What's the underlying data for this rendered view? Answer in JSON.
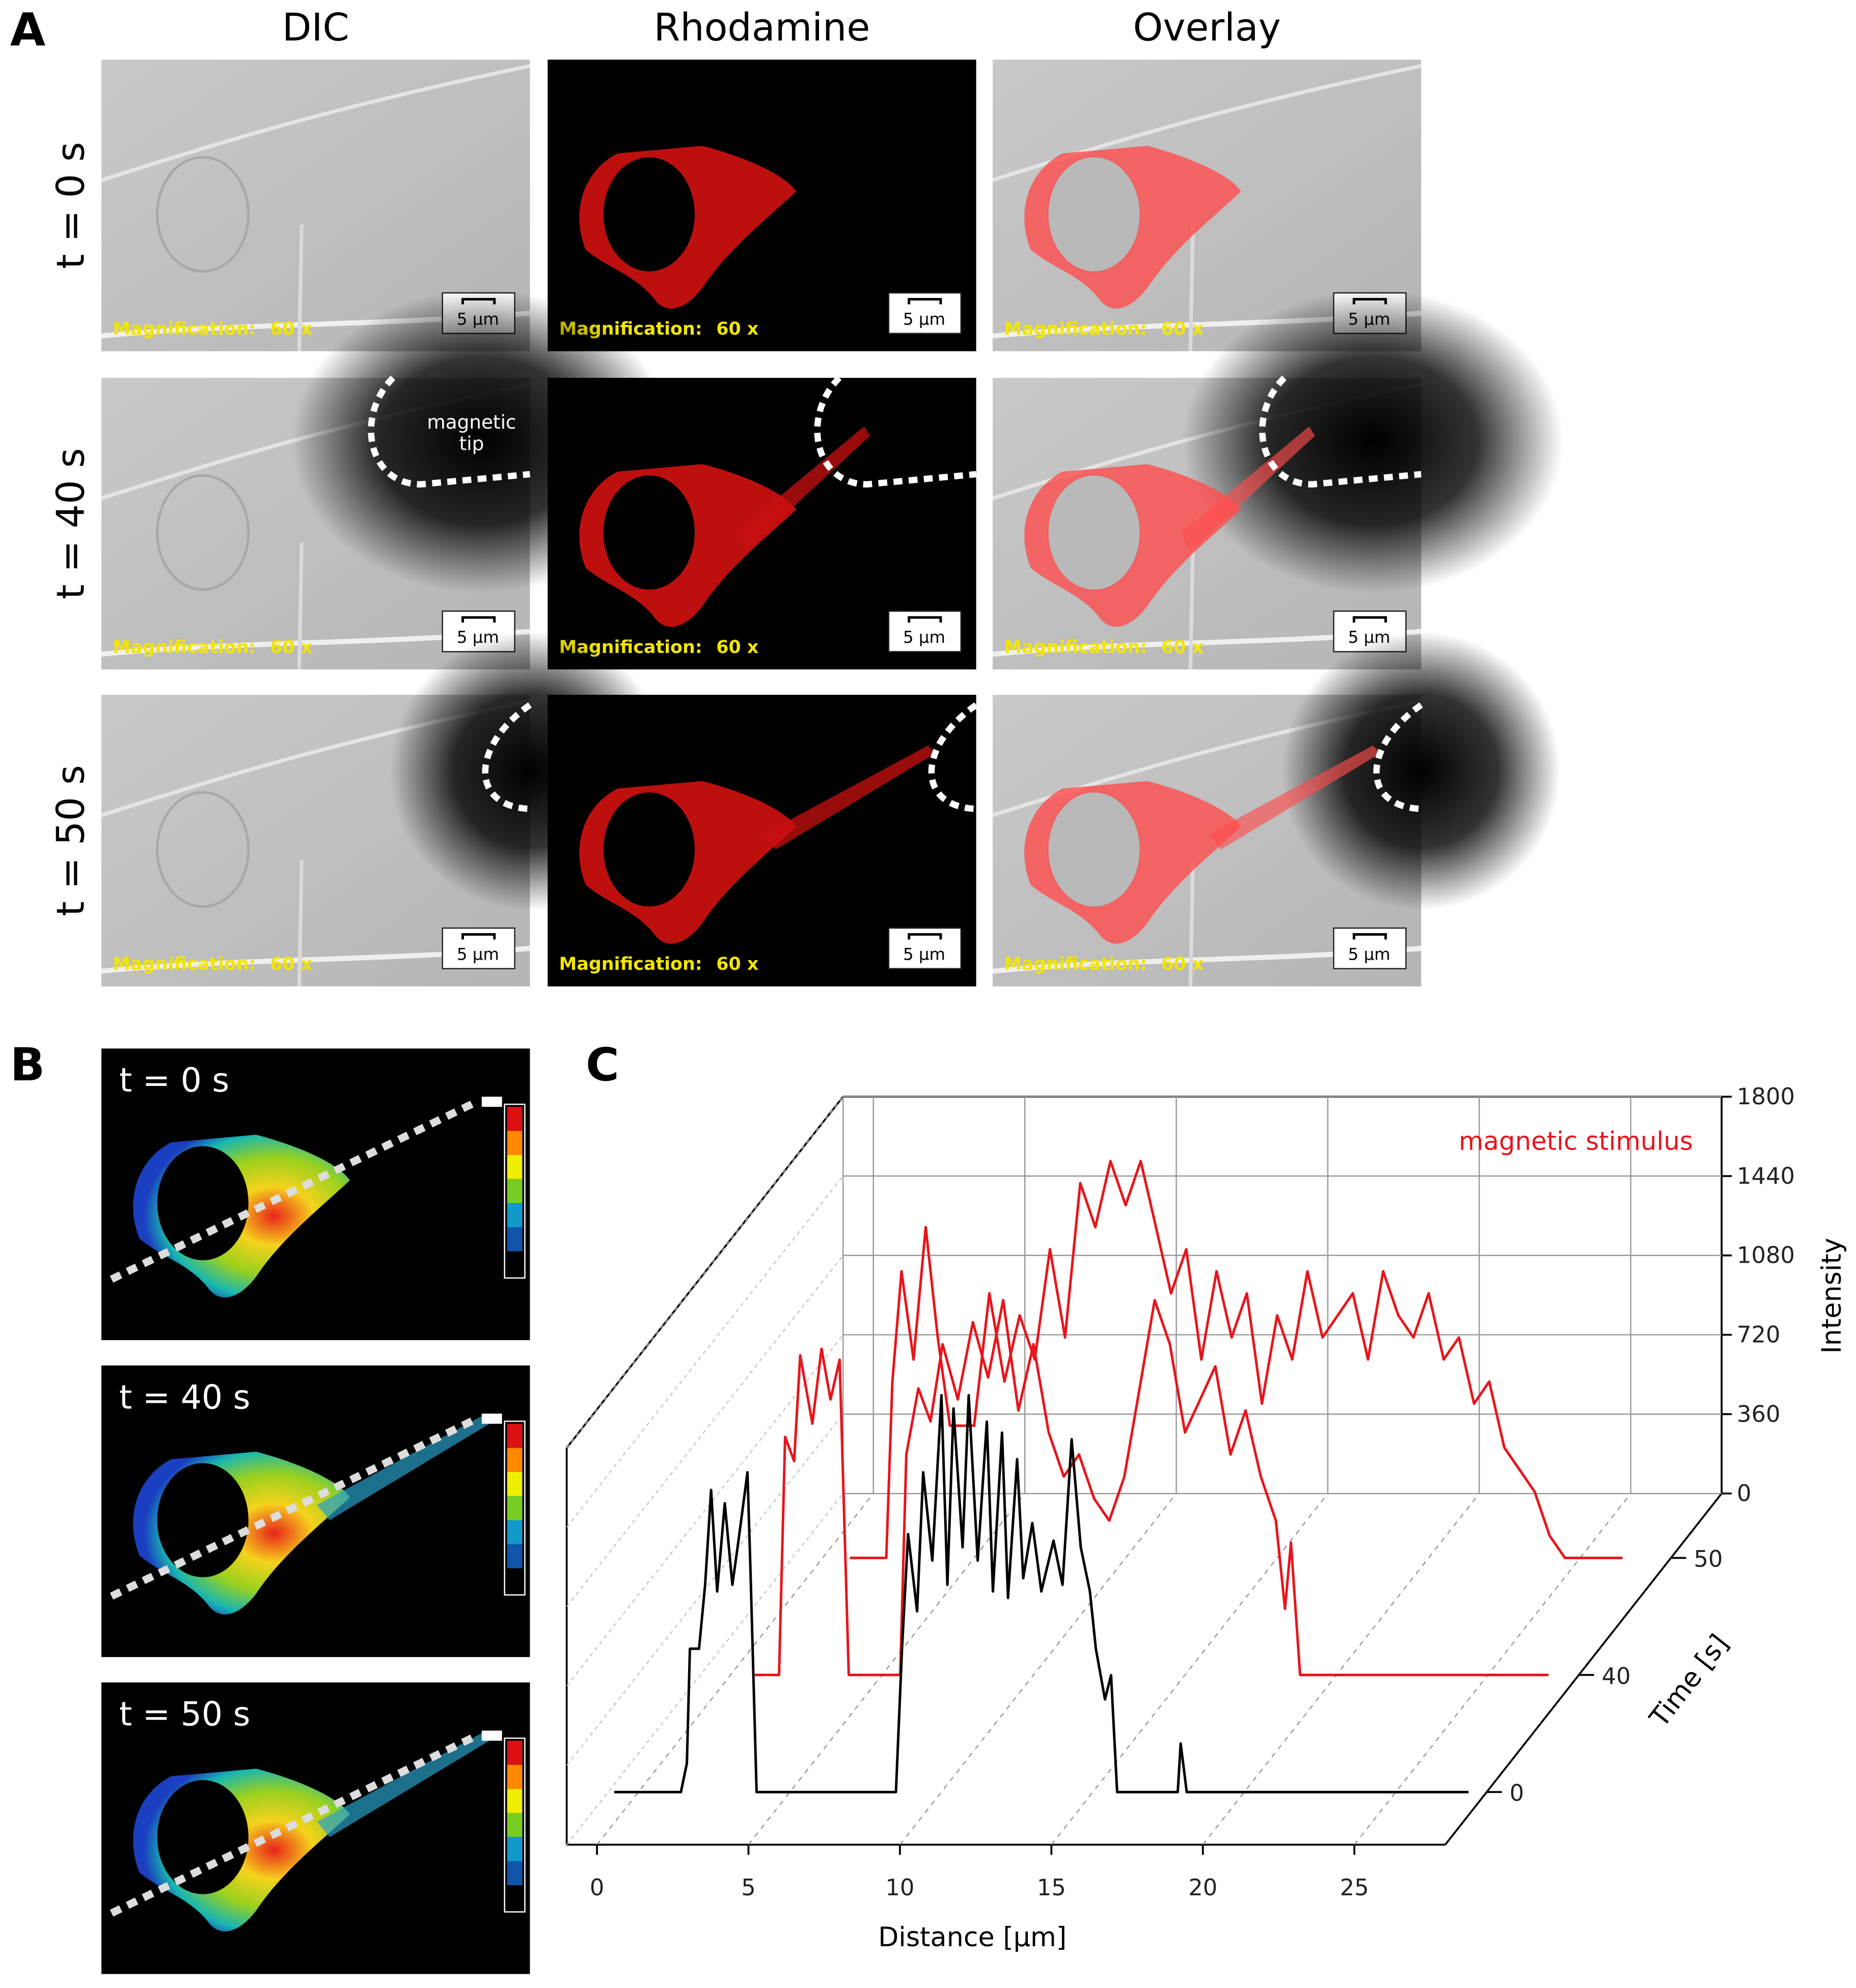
{
  "panel_labels": [
    "A",
    "B",
    "C"
  ],
  "panel_a": {
    "columns": [
      "DIC",
      "Rhodamine",
      "Overlay"
    ],
    "rows": [
      "t = 0 s",
      "t = 40 s",
      "t = 50 s"
    ],
    "image_labels": {
      "magnification": "Magnification:",
      "value": "60 x",
      "scale_bar": "5 µm"
    },
    "annotation": [
      "magnetic",
      "tip"
    ]
  },
  "panel_b": {
    "rows": [
      "t = 0 s",
      "t = 40 s",
      "t = 50 s"
    ]
  },
  "chart_data": {
    "type": "line3d",
    "xlabel": "Distance [µm]",
    "ylabel": "Intensity",
    "zlabel": "Time [s]",
    "annotation": "magnetic stimulus",
    "xlim": [
      -1,
      28
    ],
    "xticks": [
      0,
      5,
      10,
      15,
      20,
      25
    ],
    "ylim": [
      0,
      1800
    ],
    "yticks": [
      0,
      360,
      720,
      1080,
      1440,
      1800
    ],
    "zticks": [
      0,
      40,
      50
    ],
    "grid": true,
    "series": [
      {
        "color": "#000000",
        "x": [
          -0.8,
          1.4,
          1.6,
          1.7,
          2.0,
          2.2,
          2.4,
          2.6,
          2.85,
          3.1,
          3.3,
          3.6,
          3.7,
          3.9,
          8.5,
          8.7,
          8.9,
          9.2,
          9.4,
          9.7,
          10.0,
          10.2,
          10.4,
          10.7,
          10.9,
          11.2,
          11.5,
          11.7,
          12.0,
          12.2,
          12.5,
          12.7,
          13.0,
          13.3,
          13.7,
          14.0,
          14.3,
          14.6,
          14.9,
          15.1,
          15.4,
          15.6,
          15.8,
          17.8,
          17.9,
          18.1,
          27.4
        ],
        "values": [
          0,
          0,
          130,
          650,
          650,
          940,
          1370,
          910,
          1310,
          940,
          1140,
          1450,
          1000,
          0,
          0,
          650,
          1170,
          820,
          1450,
          1050,
          1800,
          940,
          1740,
          1110,
          1800,
          1050,
          1680,
          910,
          1630,
          880,
          1510,
          970,
          1220,
          910,
          1140,
          940,
          1600,
          1110,
          910,
          650,
          420,
          530,
          0,
          0,
          220,
          0,
          0
        ]
      },
      {
        "color": "#e8141b",
        "x": [
          0.8,
          1.6,
          1.8,
          2.1,
          2.3,
          2.7,
          3.0,
          3.3,
          3.6,
          3.9,
          5.6,
          5.8,
          6.2,
          6.6,
          7.0,
          7.5,
          8.0,
          8.5,
          9.0,
          9.5,
          10.0,
          10.5,
          11.0,
          11.5,
          12.0,
          12.5,
          13.0,
          13.5,
          14.0,
          14.5,
          15.0,
          15.5,
          16.0,
          16.5,
          17.0,
          17.5,
          18.0,
          18.3,
          18.5,
          18.8,
          27.0
        ],
        "values": [
          0,
          0,
          1080,
          970,
          1450,
          1140,
          1480,
          1250,
          1430,
          0,
          0,
          1000,
          1300,
          1150,
          1500,
          1250,
          1600,
          1350,
          1700,
          1200,
          1500,
          1100,
          900,
          1000,
          800,
          700,
          900,
          1300,
          1700,
          1500,
          1100,
          1250,
          1400,
          1000,
          1200,
          900,
          700,
          300,
          600,
          0,
          0
        ]
      },
      {
        "color": "#e8141b",
        "x": [
          0.9,
          2.1,
          2.3,
          2.6,
          3.0,
          3.4,
          3.8,
          4.2,
          5.0,
          5.5,
          6.0,
          6.5,
          7.0,
          7.5,
          8.0,
          8.5,
          9.0,
          9.5,
          10.0,
          10.5,
          11.0,
          11.5,
          12.0,
          12.5,
          13.0,
          13.5,
          14.0,
          14.5,
          15.0,
          15.5,
          16.0,
          16.5,
          17.0,
          17.5,
          18.0,
          18.5,
          19.0,
          19.5,
          20.0,
          20.5,
          21.0,
          21.5,
          22.0,
          22.5,
          23.0,
          23.5,
          24.0,
          24.5,
          26.4
        ],
        "values": [
          0,
          0,
          800,
          1300,
          900,
          1500,
          1000,
          600,
          600,
          1200,
          800,
          1100,
          900,
          1400,
          1000,
          1700,
          1500,
          1800,
          1600,
          1800,
          1500,
          1200,
          1400,
          900,
          1300,
          1000,
          1200,
          700,
          1100,
          900,
          1300,
          1000,
          1100,
          1200,
          900,
          1300,
          1100,
          1000,
          1200,
          900,
          1000,
          700,
          800,
          500,
          400,
          300,
          100,
          0,
          0
        ]
      }
    ]
  }
}
